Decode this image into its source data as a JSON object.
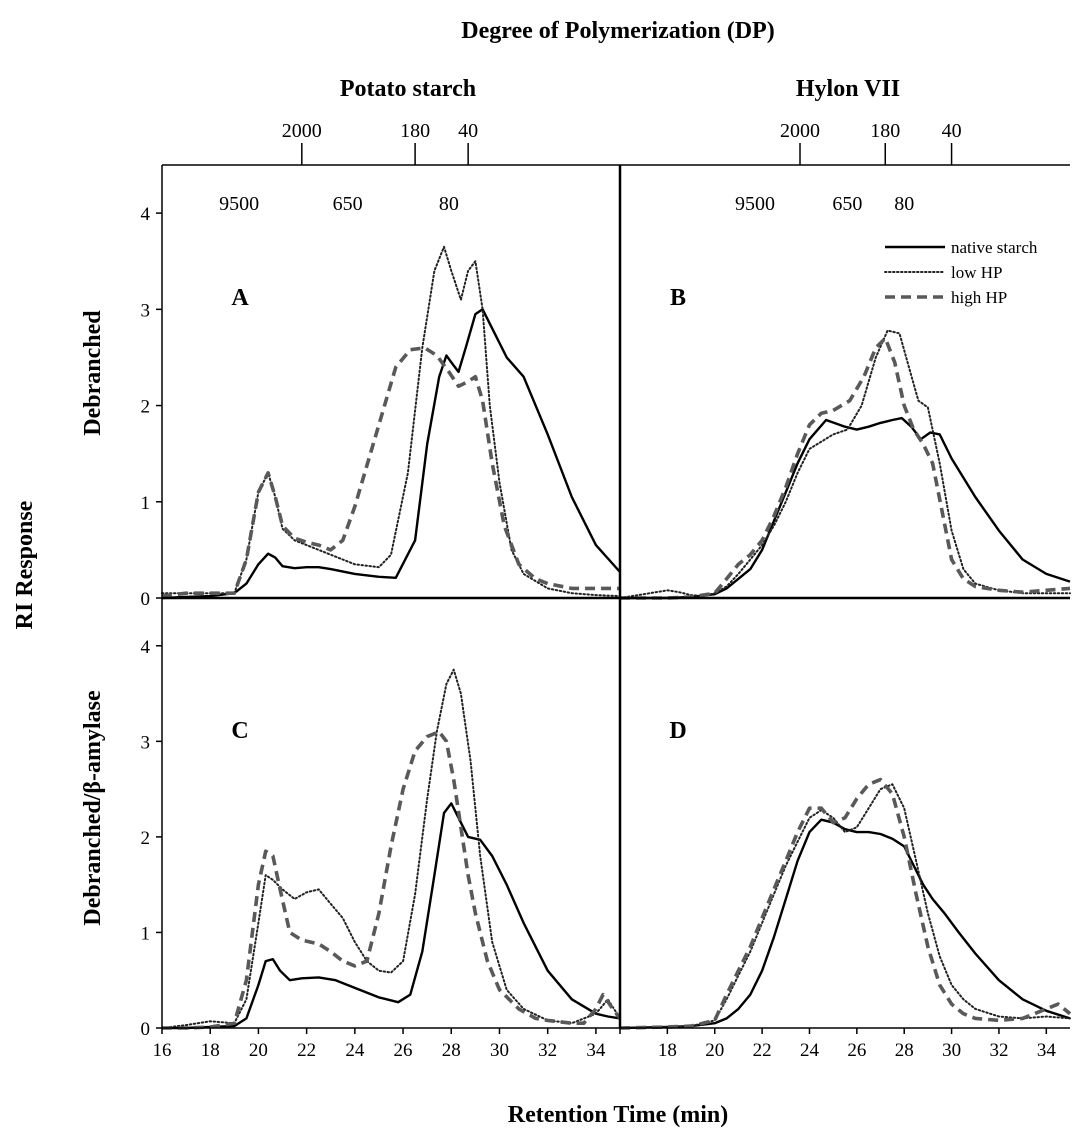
{
  "title": "Degree of Polymerization (DP)",
  "ylabel": "RI Response",
  "xlabel": "Retention Time (min)",
  "row_labels": [
    "Debranched",
    "Debranched/β-amylase"
  ],
  "column_titles": [
    "Potato starch",
    "Hylon VII"
  ],
  "legend": {
    "placement": "top-right of panel B",
    "entries": [
      {
        "label": "native starch",
        "style": "solid"
      },
      {
        "label": "low HP",
        "style": "dotted"
      },
      {
        "label": "high HP",
        "style": "dashed"
      }
    ]
  },
  "dp_axis": {
    "upper_ticks": [
      {
        "label": "2000",
        "time": 21.8
      },
      {
        "label": "180",
        "time": 26.5
      },
      {
        "label": "40",
        "time": 28.7
      }
    ],
    "lower_labels": [
      {
        "label": "9500",
        "time": 19.2
      },
      {
        "label": "650",
        "time": 23.7
      },
      {
        "label": "80",
        "time": 27.9
      }
    ],
    "panel_B_upper_ticks": [
      {
        "label": "2000",
        "time": 23.6
      },
      {
        "label": "180",
        "time": 27.2
      },
      {
        "label": "40",
        "time": 30.0
      }
    ],
    "panel_B_lower_labels": [
      {
        "label": "9500",
        "time": 21.7
      },
      {
        "label": "650",
        "time": 25.6
      },
      {
        "label": "80",
        "time": 28.0
      }
    ]
  },
  "chart_data": [
    {
      "panel": "A",
      "type": "line",
      "xlim": [
        16,
        35
      ],
      "ylim": [
        0,
        4.5
      ],
      "x_ticks": [
        16,
        18,
        20,
        22,
        24,
        26,
        28,
        30,
        32,
        34
      ],
      "y_ticks": [
        0,
        1,
        2,
        3,
        4
      ],
      "series": [
        {
          "name": "native starch",
          "style": "solid",
          "x": [
            16,
            17,
            18,
            19,
            19.5,
            20,
            20.4,
            20.7,
            21,
            21.5,
            22,
            22.5,
            23,
            24,
            25,
            25.7,
            26.5,
            27,
            27.5,
            27.8,
            28,
            28.3,
            28.6,
            29,
            29.3,
            29.8,
            30.3,
            31,
            32,
            33,
            34,
            35
          ],
          "y": [
            0,
            0.01,
            0.02,
            0.05,
            0.15,
            0.35,
            0.46,
            0.42,
            0.33,
            0.31,
            0.32,
            0.32,
            0.3,
            0.25,
            0.22,
            0.21,
            0.6,
            1.6,
            2.3,
            2.52,
            2.45,
            2.35,
            2.6,
            2.95,
            3.0,
            2.75,
            2.5,
            2.3,
            1.7,
            1.05,
            0.55,
            0.27
          ]
        },
        {
          "name": "low HP",
          "style": "dotted",
          "x": [
            16,
            17,
            18,
            19,
            19.5,
            20,
            20.4,
            20.7,
            21,
            21.5,
            22,
            22.5,
            23,
            24,
            25,
            25.5,
            26.2,
            26.8,
            27.3,
            27.7,
            28,
            28.4,
            28.7,
            29,
            29.3,
            29.6,
            30,
            30.5,
            31,
            32,
            33,
            34,
            35
          ],
          "y": [
            0.05,
            0.05,
            0.05,
            0.05,
            0.4,
            1.1,
            1.3,
            1.05,
            0.72,
            0.6,
            0.55,
            0.5,
            0.45,
            0.35,
            0.32,
            0.45,
            1.3,
            2.6,
            3.4,
            3.65,
            3.4,
            3.1,
            3.4,
            3.5,
            3.0,
            2.0,
            1.2,
            0.5,
            0.25,
            0.1,
            0.05,
            0.03,
            0.02
          ]
        },
        {
          "name": "high HP",
          "style": "dashed",
          "x": [
            16,
            17,
            18,
            19,
            19.5,
            20,
            20.4,
            20.7,
            21,
            21.5,
            22,
            22.5,
            23,
            23.5,
            24,
            25,
            25.7,
            26.3,
            26.9,
            27.4,
            27.9,
            28.3,
            28.7,
            29,
            29.3,
            29.7,
            30.2,
            30.8,
            31.5,
            32,
            33,
            34,
            35
          ],
          "y": [
            0.02,
            0.05,
            0.05,
            0.05,
            0.4,
            1.1,
            1.3,
            1.05,
            0.75,
            0.62,
            0.58,
            0.55,
            0.5,
            0.6,
            0.95,
            1.8,
            2.4,
            2.58,
            2.6,
            2.52,
            2.35,
            2.2,
            2.25,
            2.3,
            2.05,
            1.4,
            0.75,
            0.35,
            0.2,
            0.15,
            0.1,
            0.1,
            0.1
          ]
        }
      ]
    },
    {
      "panel": "B",
      "type": "line",
      "xlim": [
        16,
        35
      ],
      "ylim": [
        0,
        4.5
      ],
      "x_ticks": [
        16,
        18,
        20,
        22,
        24,
        26,
        28,
        30,
        32,
        34
      ],
      "y_ticks": [
        0,
        1,
        2,
        3,
        4
      ],
      "series": [
        {
          "name": "native starch",
          "style": "solid",
          "x": [
            16,
            18,
            19,
            20,
            20.5,
            21,
            21.5,
            22,
            22.5,
            23,
            23.5,
            24,
            24.7,
            25.5,
            26,
            26.5,
            27,
            27.5,
            27.9,
            28.3,
            28.7,
            29.1,
            29.5,
            30,
            31,
            32,
            33,
            34,
            35
          ],
          "y": [
            0,
            0,
            0.01,
            0.04,
            0.1,
            0.2,
            0.3,
            0.5,
            0.8,
            1.1,
            1.4,
            1.65,
            1.85,
            1.78,
            1.75,
            1.78,
            1.82,
            1.85,
            1.87,
            1.78,
            1.65,
            1.72,
            1.7,
            1.45,
            1.05,
            0.7,
            0.4,
            0.25,
            0.17
          ]
        },
        {
          "name": "low HP",
          "style": "dotted",
          "x": [
            16,
            17,
            18,
            18.5,
            19,
            19.5,
            20,
            20.5,
            21,
            21.5,
            22,
            22.5,
            23,
            23.5,
            24,
            25,
            25.6,
            26.2,
            26.8,
            27.3,
            27.8,
            28.2,
            28.6,
            29,
            29.5,
            30,
            30.5,
            31,
            32,
            33,
            34,
            35
          ],
          "y": [
            0,
            0.04,
            0.08,
            0.06,
            0.03,
            0.02,
            0.05,
            0.12,
            0.25,
            0.4,
            0.55,
            0.75,
            1.0,
            1.3,
            1.55,
            1.7,
            1.75,
            2.0,
            2.5,
            2.78,
            2.75,
            2.4,
            2.05,
            1.98,
            1.4,
            0.7,
            0.3,
            0.15,
            0.08,
            0.05,
            0.05,
            0.05
          ]
        },
        {
          "name": "high HP",
          "style": "dashed",
          "x": [
            16,
            18,
            19,
            20,
            20.5,
            21,
            21.5,
            22,
            22.5,
            23,
            23.5,
            24,
            24.5,
            25,
            25.7,
            26.3,
            26.8,
            27.2,
            27.6,
            28,
            28.4,
            28.8,
            29.2,
            29.6,
            30,
            30.5,
            31,
            32,
            33,
            34,
            35
          ],
          "y": [
            0,
            0,
            0.01,
            0.05,
            0.2,
            0.35,
            0.45,
            0.6,
            0.85,
            1.15,
            1.5,
            1.8,
            1.92,
            1.95,
            2.05,
            2.3,
            2.6,
            2.7,
            2.45,
            2.0,
            1.75,
            1.6,
            1.4,
            0.9,
            0.4,
            0.2,
            0.12,
            0.08,
            0.06,
            0.08,
            0.1
          ]
        }
      ]
    },
    {
      "panel": "C",
      "type": "line",
      "xlim": [
        16,
        35
      ],
      "ylim": [
        0,
        4.5
      ],
      "x_ticks": [
        16,
        18,
        20,
        22,
        24,
        26,
        28,
        30,
        32,
        34
      ],
      "y_ticks": [
        0,
        1,
        2,
        3,
        4
      ],
      "series": [
        {
          "name": "native starch",
          "style": "solid",
          "x": [
            16,
            17,
            18,
            19,
            19.5,
            20,
            20.3,
            20.6,
            20.9,
            21.3,
            21.8,
            22.5,
            23.2,
            24,
            25,
            25.8,
            26.3,
            26.8,
            27.3,
            27.7,
            28,
            28.3,
            28.7,
            29.2,
            29.7,
            30.3,
            31,
            32,
            33,
            34,
            34.5,
            35
          ],
          "y": [
            0,
            0,
            0.01,
            0.02,
            0.1,
            0.45,
            0.7,
            0.72,
            0.6,
            0.5,
            0.52,
            0.53,
            0.5,
            0.42,
            0.32,
            0.27,
            0.35,
            0.8,
            1.6,
            2.25,
            2.35,
            2.2,
            2.0,
            1.97,
            1.8,
            1.5,
            1.1,
            0.6,
            0.3,
            0.15,
            0.12,
            0.1
          ]
        },
        {
          "name": "low HP",
          "style": "dotted",
          "x": [
            16,
            17,
            18,
            19,
            19.5,
            20,
            20.3,
            20.6,
            21,
            21.5,
            22,
            22.5,
            23,
            23.5,
            24,
            24.5,
            25,
            25.5,
            26,
            26.5,
            27,
            27.4,
            27.8,
            28.1,
            28.4,
            28.8,
            29.2,
            29.7,
            30.3,
            31,
            32,
            33,
            34,
            34.5,
            35
          ],
          "y": [
            0,
            0.03,
            0.07,
            0.05,
            0.3,
            1.1,
            1.6,
            1.55,
            1.45,
            1.35,
            1.42,
            1.45,
            1.3,
            1.15,
            0.9,
            0.7,
            0.6,
            0.58,
            0.7,
            1.4,
            2.4,
            3.1,
            3.6,
            3.75,
            3.5,
            2.8,
            1.8,
            0.9,
            0.4,
            0.2,
            0.08,
            0.05,
            0.15,
            0.3,
            0.1
          ]
        },
        {
          "name": "high HP",
          "style": "dashed",
          "x": [
            16,
            17,
            18,
            19,
            19.5,
            20,
            20.3,
            20.6,
            20.9,
            21.3,
            21.8,
            22.5,
            23,
            23.5,
            24,
            24.5,
            25,
            25.5,
            26,
            26.5,
            27,
            27.5,
            27.8,
            28.1,
            28.4,
            28.7,
            29,
            29.5,
            30,
            30.8,
            31.5,
            32,
            33,
            33.5,
            34,
            34.3,
            34.7,
            35
          ],
          "y": [
            0,
            0,
            0.01,
            0.05,
            0.5,
            1.5,
            1.85,
            1.8,
            1.45,
            1.0,
            0.92,
            0.88,
            0.8,
            0.7,
            0.65,
            0.7,
            1.2,
            1.9,
            2.5,
            2.9,
            3.05,
            3.1,
            3.0,
            2.6,
            2.1,
            1.6,
            1.2,
            0.7,
            0.4,
            0.2,
            0.1,
            0.08,
            0.05,
            0.05,
            0.2,
            0.35,
            0.2,
            0.1
          ]
        }
      ]
    },
    {
      "panel": "D",
      "type": "line",
      "xlim": [
        16,
        35
      ],
      "ylim": [
        0,
        4.5
      ],
      "x_ticks": [
        16,
        18,
        20,
        22,
        24,
        26,
        28,
        30,
        32,
        34
      ],
      "y_ticks": [
        0,
        1,
        2,
        3,
        4
      ],
      "series": [
        {
          "name": "native starch",
          "style": "solid",
          "x": [
            16,
            18,
            19,
            20,
            20.5,
            21,
            21.5,
            22,
            22.5,
            23,
            23.5,
            24,
            24.5,
            25,
            25.5,
            26,
            26.5,
            27,
            27.5,
            28,
            28.4,
            28.8,
            29.2,
            29.7,
            30.3,
            31,
            32,
            33,
            34,
            35
          ],
          "y": [
            0,
            0.01,
            0.02,
            0.05,
            0.1,
            0.2,
            0.35,
            0.6,
            0.95,
            1.35,
            1.75,
            2.05,
            2.18,
            2.15,
            2.08,
            2.05,
            2.05,
            2.03,
            1.98,
            1.9,
            1.7,
            1.5,
            1.35,
            1.2,
            1.0,
            0.78,
            0.5,
            0.3,
            0.18,
            0.1
          ]
        },
        {
          "name": "low HP",
          "style": "dotted",
          "x": [
            16,
            18,
            19,
            20,
            20.5,
            21,
            21.5,
            22,
            22.5,
            23,
            23.5,
            24,
            24.5,
            25,
            25.5,
            26,
            26.5,
            27,
            27.5,
            28,
            28.5,
            29,
            29.5,
            30,
            30.5,
            31,
            32,
            33,
            34,
            35
          ],
          "y": [
            0,
            0.01,
            0.02,
            0.08,
            0.3,
            0.55,
            0.8,
            1.1,
            1.4,
            1.7,
            1.95,
            2.2,
            2.28,
            2.2,
            2.05,
            2.1,
            2.3,
            2.5,
            2.55,
            2.3,
            1.75,
            1.2,
            0.75,
            0.45,
            0.3,
            0.2,
            0.12,
            0.1,
            0.12,
            0.1
          ]
        },
        {
          "name": "high HP",
          "style": "dashed",
          "x": [
            16,
            18,
            19,
            20,
            20.5,
            21,
            21.5,
            22,
            22.5,
            23,
            23.5,
            24,
            24.5,
            25,
            25.5,
            26,
            26.5,
            27,
            27.5,
            28,
            28.5,
            29,
            29.5,
            30,
            30.5,
            31,
            32,
            33,
            34,
            34.5,
            35
          ],
          "y": [
            0,
            0.01,
            0.02,
            0.08,
            0.35,
            0.6,
            0.85,
            1.15,
            1.45,
            1.75,
            2.05,
            2.3,
            2.3,
            2.15,
            2.2,
            2.4,
            2.55,
            2.6,
            2.45,
            2.0,
            1.4,
            0.85,
            0.45,
            0.25,
            0.15,
            0.1,
            0.08,
            0.1,
            0.2,
            0.25,
            0.15
          ]
        }
      ]
    }
  ]
}
